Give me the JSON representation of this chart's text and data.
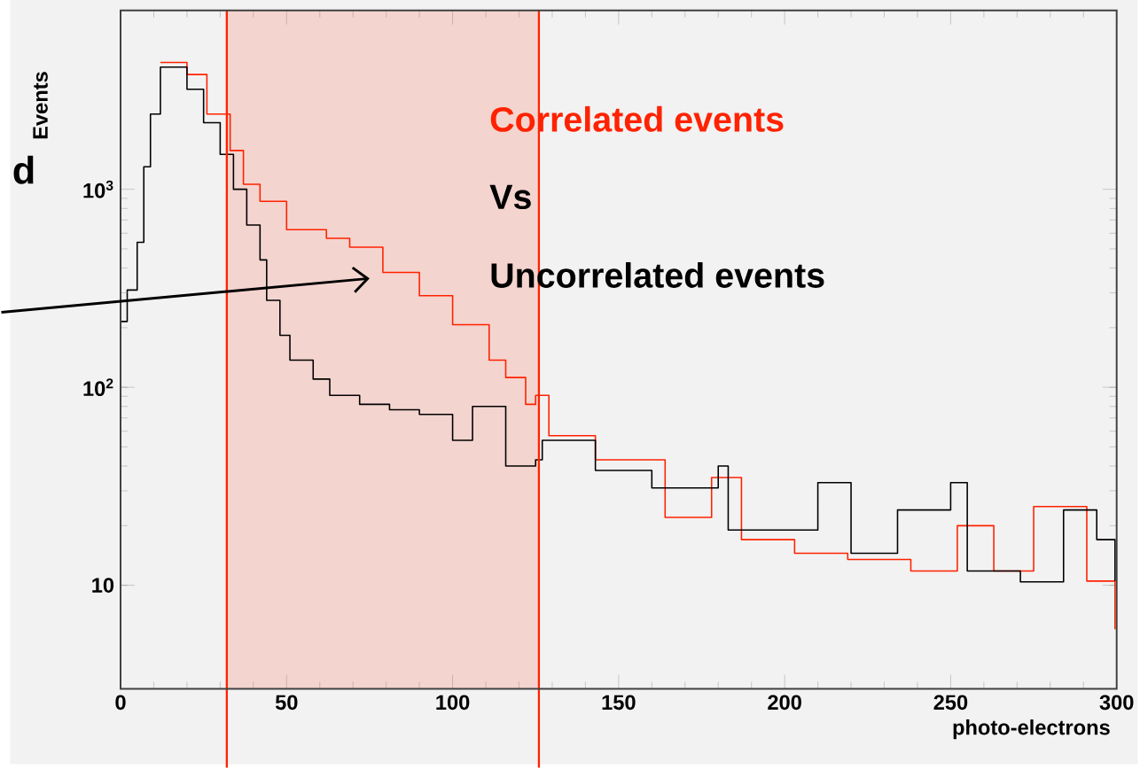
{
  "chart_data": {
    "type": "step",
    "xlabel": "photo-electrons",
    "ylabel": "Events",
    "log": "y",
    "xlim": [
      0,
      300
    ],
    "ylim": [
      3,
      8000
    ],
    "xticks": [
      0,
      50,
      100,
      150,
      200,
      250,
      300
    ],
    "yticks": [
      {
        "value": 10,
        "label": "10"
      },
      {
        "value": 100,
        "label": "10$^{2}$"
      },
      {
        "value": 1000,
        "label": "10$^{3}$"
      }
    ],
    "legend": "top right",
    "annotations": [
      "Vs",
      "d"
    ],
    "bands": [
      {
        "axis": "x",
        "from": 32,
        "to": 126,
        "color": "#f4d4cf"
      }
    ],
    "ref_lines": [
      {
        "axis": "x",
        "value": 32,
        "color": "#ff2200"
      },
      {
        "axis": "x",
        "value": 126,
        "color": "#ff2200"
      }
    ],
    "series": [
      {
        "name": "Correlated events",
        "color": "#ff2200",
        "x": [
          12,
          20,
          26,
          33,
          37,
          42,
          50,
          62,
          69,
          79,
          90,
          100,
          111,
          116,
          122,
          125,
          129,
          134,
          143,
          164,
          178,
          187,
          203,
          219,
          238,
          252,
          263,
          275,
          291,
          299.5
        ],
        "values": [
          4370,
          3800,
          2400,
          1570,
          1060,
          870,
          625,
          565,
          510,
          380,
          290,
          207,
          137,
          112,
          82,
          91,
          57,
          57,
          43,
          22,
          35,
          17,
          14.5,
          13.5,
          11.8,
          20,
          11.8,
          25,
          10.5,
          6
        ]
      },
      {
        "name": "Uncorrelated events",
        "color": "#000000",
        "x": [
          0,
          2,
          5,
          7,
          9,
          12,
          20,
          25,
          30,
          34,
          38,
          42,
          44,
          48,
          51,
          58,
          63,
          72,
          81,
          90,
          100,
          106,
          116,
          125,
          127,
          143,
          160,
          180,
          183,
          210,
          220,
          234,
          250,
          255,
          271,
          284,
          294,
          299.5
        ],
        "values": [
          215,
          310,
          540,
          1300,
          2400,
          4140,
          3200,
          2170,
          1500,
          1000,
          660,
          440,
          275,
          183,
          137,
          110,
          91,
          82,
          77,
          73,
          54,
          80,
          40,
          43,
          54,
          38,
          31,
          40,
          19,
          33,
          14.5,
          24,
          33,
          11.8,
          10.4,
          24,
          17,
          10.5
        ]
      }
    ]
  }
}
